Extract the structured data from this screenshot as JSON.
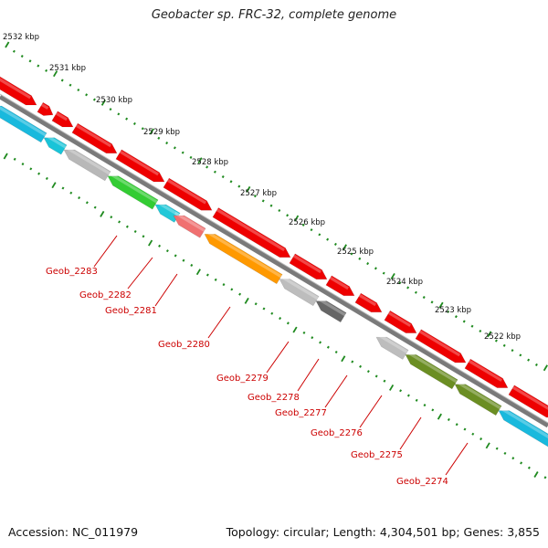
{
  "title": "Geobacter sp. FRC-32, complete genome",
  "footer": {
    "accession": "Accession: NC_011979",
    "summary": "Topology: circular; Length: 4,304,501 bp; Genes: 3,855"
  },
  "colors": {
    "backbone": "#7a7a7a",
    "tick": "#1f8a1f",
    "cds_forward": "#ee0000",
    "label": "#cc0000"
  },
  "scale": {
    "unit": "kbp",
    "labels": [
      "2532 kbp",
      "2531 kbp",
      "2530 kbp",
      "2529 kbp",
      "2528 kbp",
      "2527 kbp",
      "2526 kbp",
      "2525 kbp",
      "2524 kbp",
      "2523 kbp",
      "2522 kbp"
    ]
  },
  "gene_labels": [
    "Geob_2283",
    "Geob_2282",
    "Geob_2281",
    "Geob_2280",
    "Geob_2279",
    "Geob_2278",
    "Geob_2277",
    "Geob_2276",
    "Geob_2275",
    "Geob_2274"
  ]
}
